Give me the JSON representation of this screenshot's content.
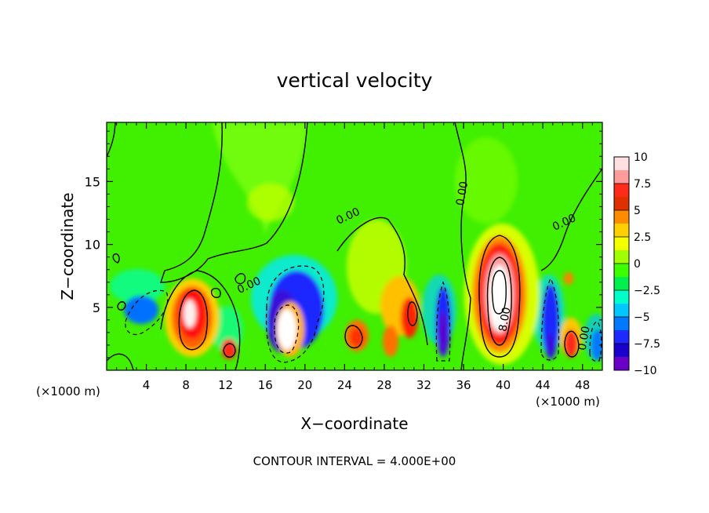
{
  "chart_data": {
    "type": "heatmap",
    "title": "vertical velocity",
    "xlabel": "X−coordinate",
    "ylabel": "Z−coordinate",
    "x_unit_left": "(×1000 m)",
    "x_unit_right": "(×1000 m)",
    "x_ticks": [
      4,
      8,
      12,
      16,
      20,
      24,
      28,
      32,
      36,
      40,
      44,
      48
    ],
    "y_ticks": [
      5,
      10,
      15
    ],
    "xlim": [
      0,
      50
    ],
    "ylim": [
      0,
      19.7
    ],
    "colorbar": {
      "min": -10,
      "max": 10,
      "labels": [
        "10",
        "7.5",
        "5",
        "2.5",
        "0",
        "−2.5",
        "−5",
        "−7.5",
        "−10"
      ],
      "colors": [
        "#ffe0e0",
        "#ff9b9b",
        "#ff2a1a",
        "#e03000",
        "#ff8c00",
        "#ffd000",
        "#f4ff00",
        "#a0ff00",
        "#3cff00",
        "#00f050",
        "#00ffc8",
        "#00c8ff",
        "#0078ff",
        "#1e28ff",
        "#1a00cc",
        "#6a00c8"
      ]
    },
    "contour_labels": [
      {
        "text": "0.00",
        "x": 24.5,
        "y": 12
      },
      {
        "text": "0.00",
        "x": 36.2,
        "y": 14
      },
      {
        "text": "0.00",
        "x": 46.3,
        "y": 11.5
      },
      {
        "text": "0.00",
        "x": 14.5,
        "y": 6.5
      },
      {
        "text": "8.00",
        "x": 40.5,
        "y": 4
      },
      {
        "text": "0.00",
        "x": 48.5,
        "y": 2.5
      }
    ],
    "cells": [
      {
        "x": 9,
        "z": 4.5,
        "value": 10
      },
      {
        "x": 12.5,
        "z": 1.5,
        "value": 6
      },
      {
        "x": 18,
        "z": 3.5,
        "value": 10
      },
      {
        "x": 17.5,
        "z": 4.5,
        "value": -10
      },
      {
        "x": 25,
        "z": 2.5,
        "value": 6
      },
      {
        "x": 30.5,
        "z": 4,
        "value": 7
      },
      {
        "x": 33.5,
        "z": 3,
        "value": -10
      },
      {
        "x": 39.5,
        "z": 6,
        "value": 10
      },
      {
        "x": 45,
        "z": 3,
        "value": -9
      },
      {
        "x": 46.5,
        "z": 2,
        "value": 7
      }
    ],
    "footer": "CONTOUR INTERVAL = 4.000E+00"
  }
}
